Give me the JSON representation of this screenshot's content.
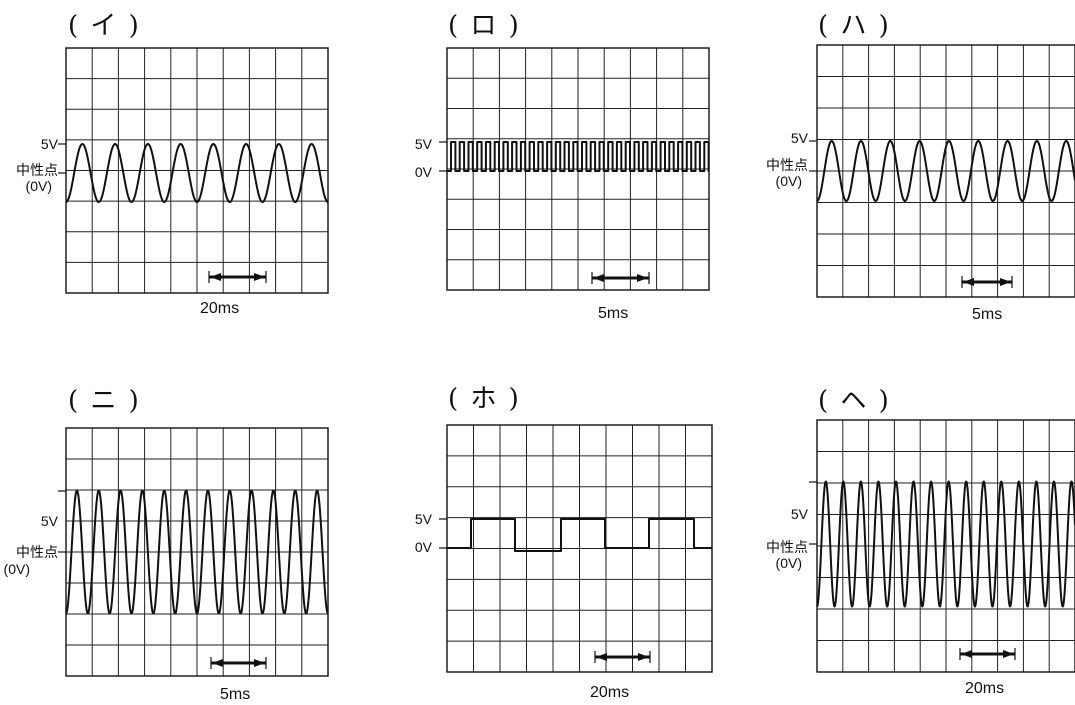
{
  "panels": [
    {
      "title": "( イ )",
      "time_div": "20ms",
      "label_high": "5V",
      "label_mid": "中性点",
      "label_mid2": "(0V)",
      "wave": "sine",
      "cycles": 8
    },
    {
      "title": "( ロ )",
      "time_div": "5ms",
      "label_high": "5V",
      "label_mid": "0V",
      "label_mid2": "",
      "wave": "square",
      "cycles": 30
    },
    {
      "title": "( ハ )",
      "time_div": "5ms",
      "label_high": "5V",
      "label_mid": "中性点",
      "label_mid2": "(0V)",
      "wave": "sine",
      "cycles": 8.8
    },
    {
      "title": "( ニ )",
      "time_div": "5ms",
      "label_high": "5V",
      "label_mid": "中性点",
      "label_mid2": "(0V)",
      "wave": "sine",
      "cycles": 12
    },
    {
      "title": "( ホ )",
      "time_div": "20ms",
      "label_high": "5V",
      "label_mid": "0V",
      "label_mid2": "",
      "wave": "square",
      "cycles": 3
    },
    {
      "title": "( ヘ )",
      "time_div": "20ms",
      "label_high": "5V",
      "label_mid": "中性点",
      "label_mid2": "(0V)",
      "wave": "sine",
      "cycles": 14.7
    }
  ]
}
